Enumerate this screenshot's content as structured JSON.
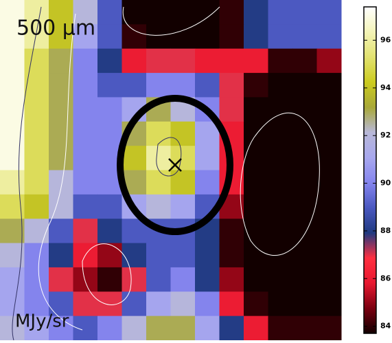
{
  "chart_data": {
    "type": "heatmap",
    "title": "500 μm",
    "colorbar_label": "MJy/sr",
    "values": [
      [
        97,
        96,
        94,
        92,
        89,
        83,
        83,
        83,
        83,
        84,
        88,
        89,
        89,
        89
      ],
      [
        97,
        96,
        94,
        91,
        89,
        84,
        83,
        83,
        83,
        84,
        88,
        89,
        89,
        89
      ],
      [
        97,
        95,
        93,
        90,
        88,
        86,
        87,
        87,
        86,
        86,
        86,
        84,
        84,
        85
      ],
      [
        97,
        95,
        93,
        90,
        89,
        89,
        90,
        90,
        89,
        87,
        84,
        83,
        83,
        83
      ],
      [
        97,
        95,
        93,
        90,
        90,
        91,
        93,
        92,
        90,
        87,
        83,
        83,
        83,
        83
      ],
      [
        97,
        95,
        93,
        90,
        90,
        93,
        95,
        94,
        91,
        86,
        83,
        83,
        83,
        83
      ],
      [
        97,
        95,
        93,
        90,
        90,
        94,
        96,
        95,
        91,
        86,
        83,
        83,
        83,
        83
      ],
      [
        96,
        95,
        92,
        90,
        90,
        93,
        95,
        94,
        90,
        86,
        83,
        83,
        83,
        83
      ],
      [
        95,
        94,
        92,
        89,
        89,
        91,
        92,
        91,
        89,
        85,
        83,
        83,
        83,
        83
      ],
      [
        93,
        92,
        89,
        87,
        88,
        89,
        89,
        89,
        88,
        84,
        83,
        83,
        83,
        83
      ],
      [
        92,
        90,
        88,
        86,
        85,
        88,
        89,
        89,
        88,
        84,
        83,
        83,
        83,
        83
      ],
      [
        91,
        90,
        87,
        85,
        84,
        87,
        89,
        90,
        88,
        85,
        83,
        83,
        83,
        83
      ],
      [
        91,
        90,
        89,
        87,
        87,
        89,
        91,
        92,
        90,
        86,
        84,
        83,
        83,
        83
      ],
      [
        92,
        91,
        90,
        89,
        90,
        92,
        93,
        93,
        91,
        88,
        86,
        84,
        84,
        84
      ]
    ],
    "clim": [
      83.7,
      97.4
    ],
    "colorbar_ticks": [
      84,
      86,
      88,
      90,
      92,
      94,
      96
    ],
    "colormap": [
      "#120000",
      "#7a0010",
      "#e81830",
      "#ff3040",
      "#203a80",
      "#4a58c0",
      "#8585ee",
      "#a8a8ee",
      "#b8b8d8",
      "#a8a838",
      "#cccc20",
      "#e2e270",
      "#f4f4b8",
      "#ffffff"
    ]
  }
}
